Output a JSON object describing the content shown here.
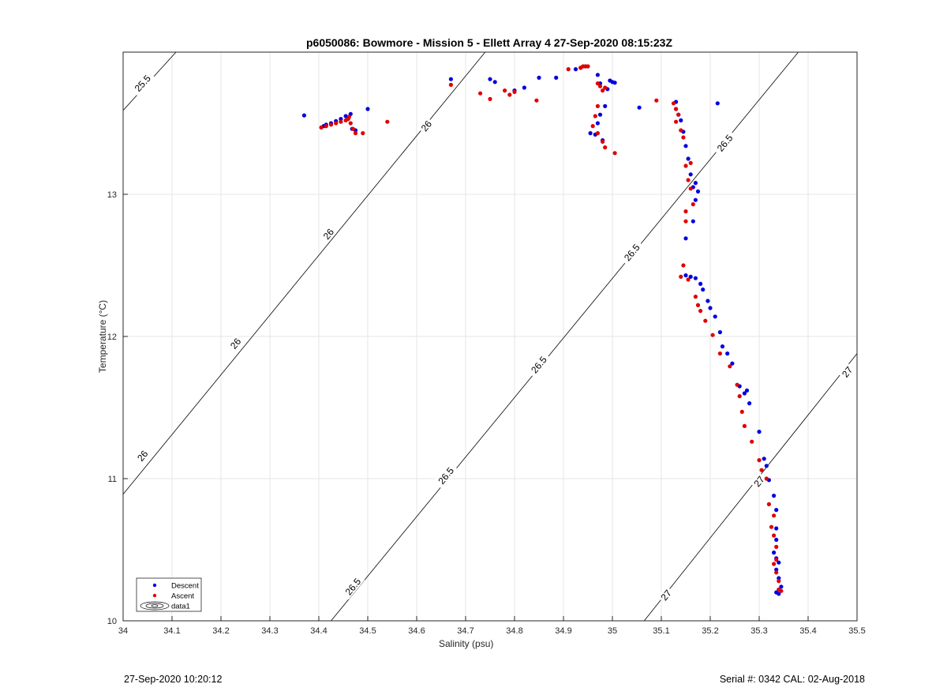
{
  "title": "p6050086: Bowmore - Mission 5 - Ellett Array 4 27-Sep-2020 08:15:23Z",
  "footer": {
    "timestamp": "27-Sep-2020 10:20:12",
    "serial": "Serial #: 0342  CAL: 02-Aug-2018"
  },
  "colors": {
    "descent": "#0000e0",
    "ascent": "#e00000",
    "contour": "#000000",
    "grid": "#e6e6e6"
  },
  "chart_data": {
    "type": "scatter",
    "title": "p6050086: Bowmore - Mission 5 - Ellett Array 4 27-Sep-2020 08:15:23Z",
    "xlabel": "Salinity (psu)",
    "ylabel": "Temperature (°C)",
    "xlim": [
      34,
      35.5
    ],
    "ylim": [
      10,
      14
    ],
    "xticks": [
      "34",
      "34.1",
      "34.2",
      "34.3",
      "34.4",
      "34.5",
      "34.6",
      "34.7",
      "34.8",
      "34.9",
      "35",
      "35.1",
      "35.2",
      "35.3",
      "35.4",
      "35.5"
    ],
    "yticks": [
      "10",
      "11",
      "12",
      "13"
    ],
    "grid": true,
    "legend": {
      "location": "bottom-left",
      "entries": [
        "Descent",
        "Ascent",
        "data1"
      ]
    },
    "contours": [
      {
        "level": "25.5",
        "points": [
          [
            34.0,
            13.59
          ],
          [
            34.108,
            14.0
          ]
        ]
      },
      {
        "level": "26",
        "points": [
          [
            34.0,
            10.89
          ],
          [
            34.74,
            14.0
          ]
        ]
      },
      {
        "level": "26.5",
        "points": [
          [
            34.425,
            10.0
          ],
          [
            35.38,
            14.0
          ]
        ]
      },
      {
        "level": "27",
        "points": [
          [
            35.065,
            10.0
          ],
          [
            35.5,
            11.88
          ]
        ]
      }
    ],
    "contour_labels": [
      {
        "text": "25.5",
        "x": 34.04,
        "y": 13.78
      },
      {
        "text": "26",
        "x": 34.04,
        "y": 11.16
      },
      {
        "text": "26",
        "x": 34.23,
        "y": 11.95
      },
      {
        "text": "26",
        "x": 34.42,
        "y": 12.72
      },
      {
        "text": "26",
        "x": 34.62,
        "y": 13.48
      },
      {
        "text": "26.5",
        "x": 34.47,
        "y": 10.24
      },
      {
        "text": "26.5",
        "x": 34.66,
        "y": 11.02
      },
      {
        "text": "26.5",
        "x": 34.85,
        "y": 11.8
      },
      {
        "text": "26.5",
        "x": 35.04,
        "y": 12.59
      },
      {
        "text": "26.5",
        "x": 35.23,
        "y": 13.36
      },
      {
        "text": "27",
        "x": 35.11,
        "y": 10.18
      },
      {
        "text": "27",
        "x": 35.3,
        "y": 10.98
      },
      {
        "text": "27",
        "x": 35.48,
        "y": 11.75
      }
    ],
    "series": [
      {
        "name": "Descent",
        "x": [
          34.37,
          34.5,
          34.465,
          34.455,
          34.445,
          34.435,
          34.425,
          34.415,
          34.41,
          34.468,
          34.475,
          34.67,
          34.75,
          34.76,
          34.8,
          34.82,
          34.85,
          34.885,
          34.925,
          34.935,
          34.945,
          34.97,
          34.975,
          34.99,
          35.0,
          35.005,
          34.995,
          34.985,
          34.975,
          34.97,
          34.965,
          34.955,
          34.98,
          35.055,
          35.13,
          35.13,
          35.135,
          35.14,
          35.145,
          35.15,
          35.155,
          35.16,
          35.165,
          35.17,
          35.175,
          35.17,
          35.165,
          35.15,
          35.15,
          35.16,
          35.17,
          35.18,
          35.185,
          35.195,
          35.2,
          35.21,
          35.22,
          35.225,
          35.235,
          35.245,
          35.26,
          35.27,
          35.275,
          35.28,
          35.3,
          35.31,
          35.315,
          35.32,
          35.33,
          35.335,
          35.335,
          35.335,
          35.33,
          35.335,
          35.34,
          35.335,
          35.34,
          35.345,
          35.335,
          35.34,
          35.215
        ],
        "y": [
          13.555,
          13.6,
          13.565,
          13.55,
          13.53,
          13.515,
          13.5,
          13.49,
          13.48,
          13.46,
          13.45,
          13.81,
          13.81,
          13.79,
          13.73,
          13.75,
          13.82,
          13.82,
          13.88,
          13.89,
          13.9,
          13.84,
          13.78,
          13.74,
          13.79,
          13.785,
          13.8,
          13.62,
          13.56,
          13.5,
          13.42,
          13.43,
          13.38,
          13.61,
          13.65,
          13.6,
          13.56,
          13.52,
          13.44,
          13.34,
          13.25,
          13.14,
          13.05,
          13.08,
          13.02,
          12.96,
          12.81,
          12.69,
          12.43,
          12.42,
          12.41,
          12.37,
          12.33,
          12.25,
          12.2,
          12.14,
          12.03,
          11.93,
          11.88,
          11.81,
          11.65,
          11.6,
          11.62,
          11.53,
          11.33,
          11.14,
          11.09,
          10.99,
          10.88,
          10.78,
          10.65,
          10.57,
          10.48,
          10.44,
          10.41,
          10.36,
          10.3,
          10.24,
          10.2,
          10.19,
          13.64
        ]
      },
      {
        "name": "Ascent",
        "x": [
          34.405,
          34.415,
          34.425,
          34.435,
          34.445,
          34.455,
          34.46,
          34.462,
          34.465,
          34.47,
          34.475,
          34.49,
          34.54,
          34.67,
          34.73,
          34.75,
          34.78,
          34.79,
          34.8,
          34.845,
          34.91,
          34.935,
          34.94,
          34.945,
          34.95,
          34.97,
          34.975,
          34.98,
          34.985,
          34.97,
          34.965,
          34.96,
          34.97,
          34.98,
          34.985,
          35.005,
          35.09,
          35.125,
          35.13,
          35.135,
          35.13,
          35.14,
          35.145,
          35.15,
          35.155,
          35.16,
          35.165,
          35.16,
          35.15,
          35.15,
          35.145,
          35.14,
          35.155,
          35.17,
          35.175,
          35.18,
          35.19,
          35.205,
          35.22,
          35.24,
          35.255,
          35.26,
          35.265,
          35.27,
          35.285,
          35.3,
          35.305,
          35.315,
          35.32,
          35.33,
          35.325,
          35.33,
          35.335,
          35.335,
          35.33,
          35.335,
          35.34,
          35.34,
          35.345
        ],
        "y": [
          13.47,
          13.48,
          13.49,
          13.5,
          13.51,
          13.52,
          13.53,
          13.545,
          13.5,
          13.46,
          13.43,
          13.43,
          13.51,
          13.77,
          13.71,
          13.67,
          13.73,
          13.7,
          13.72,
          13.66,
          13.88,
          13.89,
          13.9,
          13.9,
          13.9,
          13.78,
          13.76,
          13.73,
          13.75,
          13.62,
          13.55,
          13.48,
          13.43,
          13.37,
          13.33,
          13.29,
          13.66,
          13.64,
          13.6,
          13.56,
          13.51,
          13.45,
          13.4,
          13.2,
          13.1,
          13.04,
          12.93,
          13.22,
          12.88,
          12.81,
          12.5,
          12.42,
          12.4,
          12.28,
          12.22,
          12.18,
          12.11,
          12.01,
          11.88,
          11.79,
          11.66,
          11.58,
          11.47,
          11.37,
          11.26,
          11.13,
          11.06,
          11.0,
          10.82,
          10.74,
          10.66,
          10.6,
          10.52,
          10.43,
          10.4,
          10.34,
          10.28,
          10.22,
          10.21
        ]
      }
    ]
  }
}
